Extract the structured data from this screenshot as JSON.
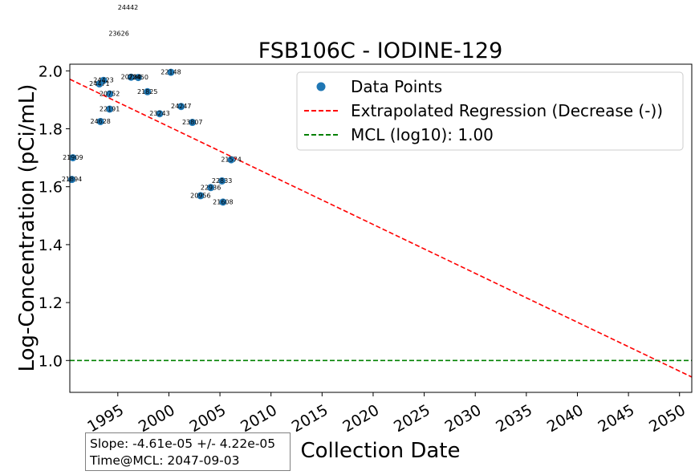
{
  "chart_data": {
    "type": "scatter",
    "title": "FSB106C - IODINE-129",
    "xlabel": "Collection Date",
    "ylabel": "Log-Concentration (pCi/mL)",
    "xlim": [
      1990.3,
      2051.2
    ],
    "ylim": [
      0.89,
      2.023
    ],
    "x_ticks": [
      1995,
      2000,
      2005,
      2010,
      2015,
      2020,
      2025,
      2030,
      2035,
      2040,
      2045,
      2050
    ],
    "y_ticks": [
      1.0,
      1.2,
      1.4,
      1.6,
      1.8,
      2.0
    ],
    "y_tick_labels": [
      "1.0",
      "1.2",
      "1.4",
      "1.6",
      "1.8",
      "2.0"
    ],
    "colors": {
      "points": "#1f77b4",
      "regression": "#ff0000",
      "mcl": "#008000"
    },
    "series": [
      {
        "name": "Data Points",
        "points": [
          {
            "x": 1990.5,
            "y": 1.625,
            "label": "21894"
          },
          {
            "x": 1990.6,
            "y": 1.7,
            "label": "21909"
          },
          {
            "x": 1993.2,
            "y": 1.955,
            "label": "24471"
          },
          {
            "x": 1993.6,
            "y": 1.967,
            "label": "24423"
          },
          {
            "x": 1993.3,
            "y": 1.825,
            "label": "24628"
          },
          {
            "x": 1994.2,
            "y": 1.92,
            "label": "20752"
          },
          {
            "x": 1994.2,
            "y": 1.868,
            "label": "22191"
          },
          {
            "x": 1996.3,
            "y": 1.978,
            "label": "20794"
          },
          {
            "x": 1997.0,
            "y": 1.977,
            "label": "22450"
          },
          {
            "x": 1997.9,
            "y": 1.928,
            "label": "21825"
          },
          {
            "x": 1999.1,
            "y": 1.852,
            "label": "23243"
          },
          {
            "x": 2000.2,
            "y": 1.995,
            "label": "22148"
          },
          {
            "x": 2001.2,
            "y": 1.877,
            "label": "24247"
          },
          {
            "x": 2002.3,
            "y": 1.822,
            "label": "23807"
          },
          {
            "x": 2003.1,
            "y": 1.569,
            "label": "20956"
          },
          {
            "x": 2004.1,
            "y": 1.597,
            "label": "22936"
          },
          {
            "x": 2005.2,
            "y": 1.62,
            "label": "22833"
          },
          {
            "x": 2005.3,
            "y": 1.547,
            "label": "21608"
          },
          {
            "x": 2006.1,
            "y": 1.693,
            "label": "21574"
          }
        ]
      },
      {
        "name": "Extrapolated Regression (Decrease (-))",
        "line": [
          [
            1990.3,
            1.971
          ],
          [
            2051.2,
            0.943
          ]
        ]
      },
      {
        "name": "MCL (log10): 1.00",
        "y": 1.0
      }
    ],
    "offscale_labels": [
      {
        "x": 1996.0,
        "y": 2.22,
        "label": "24442"
      },
      {
        "x": 1995.1,
        "y": 2.13,
        "label": "23626"
      }
    ],
    "legend": {
      "position": "top-right",
      "entries": [
        "Data Points",
        "Extrapolated Regression (Decrease (-))",
        "MCL (log10): 1.00"
      ]
    }
  },
  "stats": {
    "slope": "Slope: -4.61e-05 +/- 4.22e-05",
    "time_at_mcl": "Time@MCL: 2047-09-03"
  }
}
